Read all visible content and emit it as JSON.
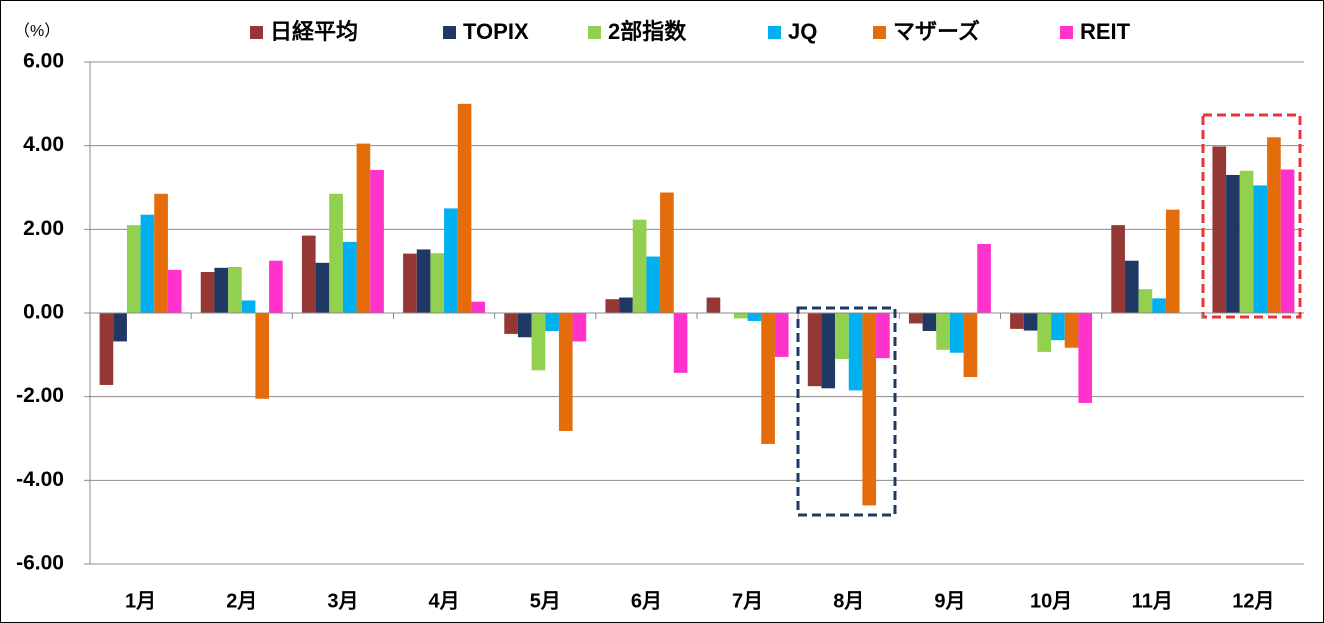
{
  "chart_data": {
    "type": "bar",
    "y_label": "（%）",
    "categories": [
      "1月",
      "2月",
      "3月",
      "4月",
      "5月",
      "6月",
      "7月",
      "8月",
      "9月",
      "10月",
      "11月",
      "12月"
    ],
    "series": [
      {
        "name": "日経平均",
        "color": "#953735",
        "values": [
          -1.72,
          0.98,
          1.85,
          1.42,
          -0.5,
          0.33,
          0.37,
          -1.75,
          -0.25,
          -0.38,
          2.1,
          3.98
        ]
      },
      {
        "name": "TOPIX",
        "color": "#1f3864",
        "values": [
          -0.68,
          1.08,
          1.2,
          1.52,
          -0.58,
          0.37,
          0,
          -1.8,
          -0.43,
          -0.42,
          1.25,
          3.3
        ]
      },
      {
        "name": "2部指数",
        "color": "#92d050",
        "values": [
          2.1,
          1.1,
          2.85,
          1.43,
          -1.37,
          2.23,
          -0.13,
          -1.1,
          -0.88,
          -0.93,
          0.57,
          3.4
        ]
      },
      {
        "name": "JQ",
        "color": "#00b0f0",
        "values": [
          2.35,
          0.3,
          1.7,
          2.5,
          -0.43,
          1.35,
          -0.19,
          -1.85,
          -0.95,
          -0.65,
          0.35,
          3.05
        ]
      },
      {
        "name": "マザーズ",
        "color": "#e46c0a",
        "values": [
          2.85,
          -2.05,
          4.05,
          5.0,
          -2.82,
          2.88,
          -3.13,
          -4.6,
          -1.53,
          -0.83,
          2.47,
          4.2
        ]
      },
      {
        "name": "REIT",
        "color": "#ff33cc",
        "values": [
          1.03,
          1.25,
          3.42,
          0.27,
          -0.68,
          -1.43,
          -1.05,
          -1.08,
          1.65,
          -2.15,
          0,
          3.43
        ]
      }
    ],
    "ylim": [
      -6,
      6
    ],
    "yticks": [
      {
        "value": -6,
        "label": "-6.00"
      },
      {
        "value": -4,
        "label": "-4.00"
      },
      {
        "value": -2,
        "label": "-2.00"
      },
      {
        "value": 0,
        "label": "0.00"
      },
      {
        "value": 2,
        "label": "2.00"
      },
      {
        "value": 4,
        "label": "4.00"
      },
      {
        "value": 6,
        "label": "6.00"
      }
    ],
    "grid": true
  }
}
